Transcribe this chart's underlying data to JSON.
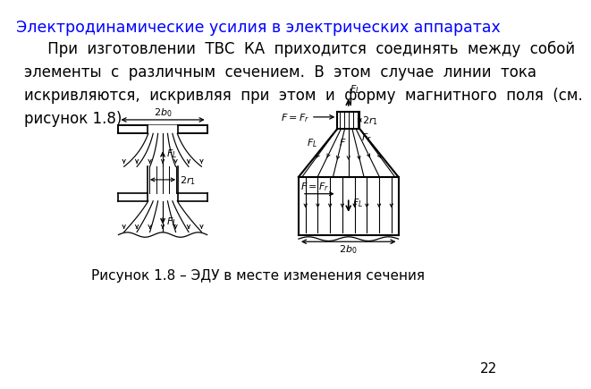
{
  "title": "Электродинамические усилия в электрических аппаратах",
  "title_color": "#0000FF",
  "title_fontsize": 12.5,
  "body_text": "     При  изготовлении  ТВС  КА  приходится  соединять  между  собой\nэлементы  с  различным  сечением.  В  этом  случае  линии  тока\nискривляются,  искривляя  при  этом  и  форму  магнитного  поля  (см.\nрисунок 1.8)",
  "body_fontsize": 12,
  "caption": "Рисунок 1.8 – ЭДУ в месте изменения сечения",
  "caption_fontsize": 11,
  "page_number": "22",
  "bg_color": "#FFFFFF",
  "dc": "#000000"
}
